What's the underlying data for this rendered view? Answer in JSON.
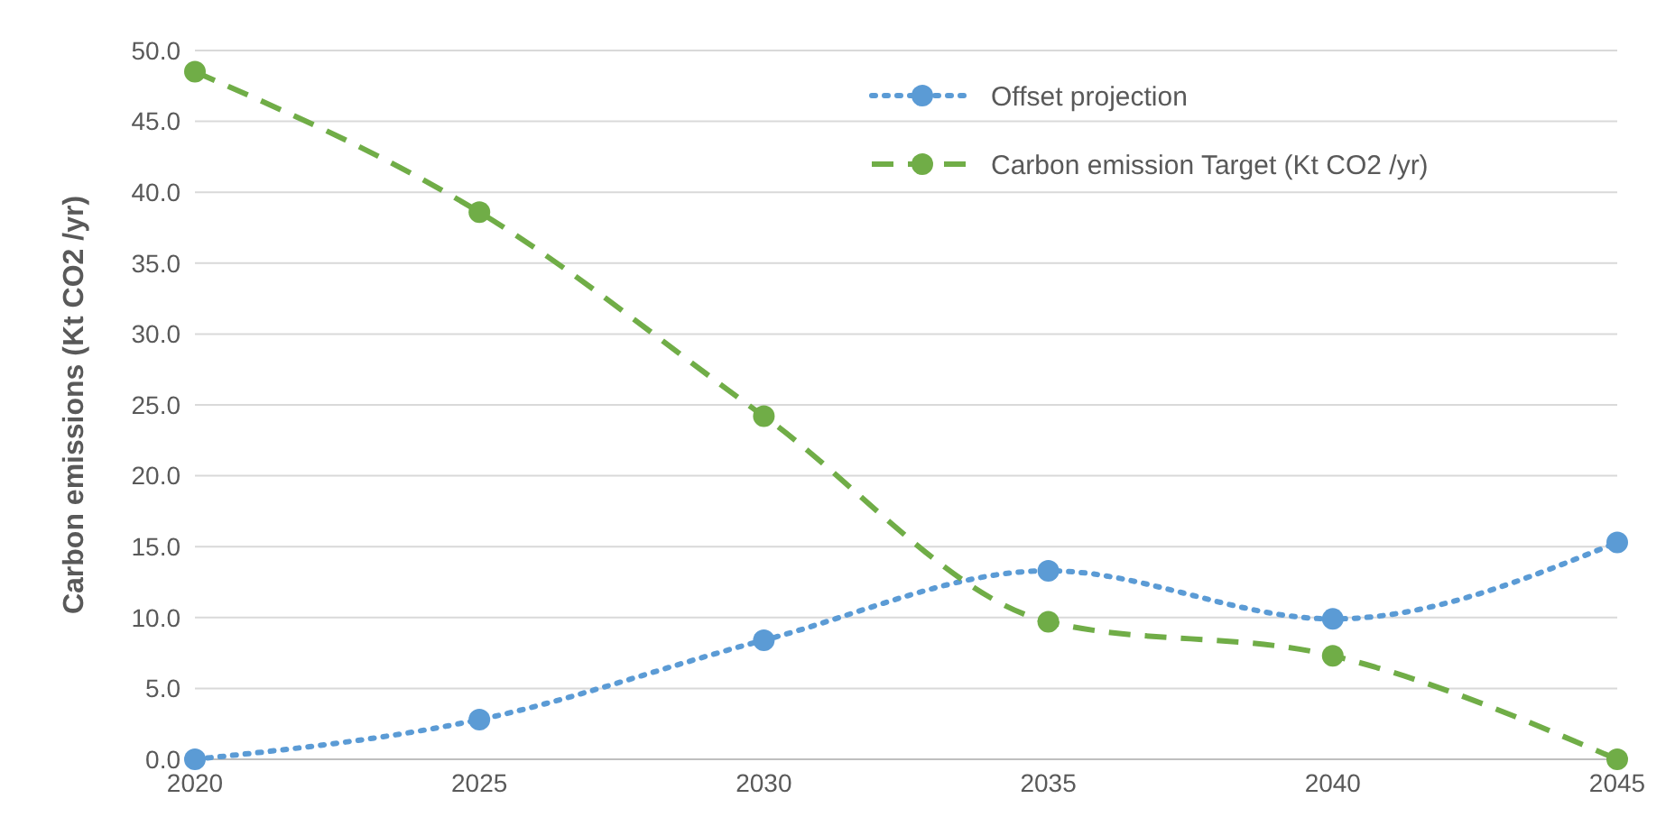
{
  "chart_data": {
    "type": "line",
    "ylabel": "Carbon emissions (Kt CO2 /yr)",
    "x": [
      2020,
      2025,
      2030,
      2035,
      2040,
      2045
    ],
    "xlim": [
      2020,
      2045
    ],
    "xticks": [
      2020,
      2025,
      2030,
      2035,
      2040,
      2045
    ],
    "ylim": [
      0,
      50
    ],
    "yticks": [
      {
        "value": 0,
        "label": "0.0"
      },
      {
        "value": 5,
        "label": "5.0"
      },
      {
        "value": 10,
        "label": "10.0"
      },
      {
        "value": 15,
        "label": "15.0"
      },
      {
        "value": 20,
        "label": "20.0"
      },
      {
        "value": 25,
        "label": "25.0"
      },
      {
        "value": 30,
        "label": "30.0"
      },
      {
        "value": 35,
        "label": "35.0"
      },
      {
        "value": 40,
        "label": "40.0"
      },
      {
        "value": 45,
        "label": "45.0"
      },
      {
        "value": 50,
        "label": "50.0"
      }
    ],
    "grid": "y",
    "legend": "top right",
    "marker": "circle",
    "series": [
      {
        "name": "Offset projection",
        "color": "#5b9bd5",
        "line_style": "dotted",
        "values": [
          0,
          2.8,
          8.4,
          13.3,
          9.9,
          15.3
        ]
      },
      {
        "name": "Carbon emission Target (Kt CO2 /yr)",
        "color": "#70ad47",
        "line_style": "dashed",
        "values": [
          48.5,
          38.6,
          24.2,
          9.7,
          7.3,
          0
        ]
      }
    ]
  }
}
